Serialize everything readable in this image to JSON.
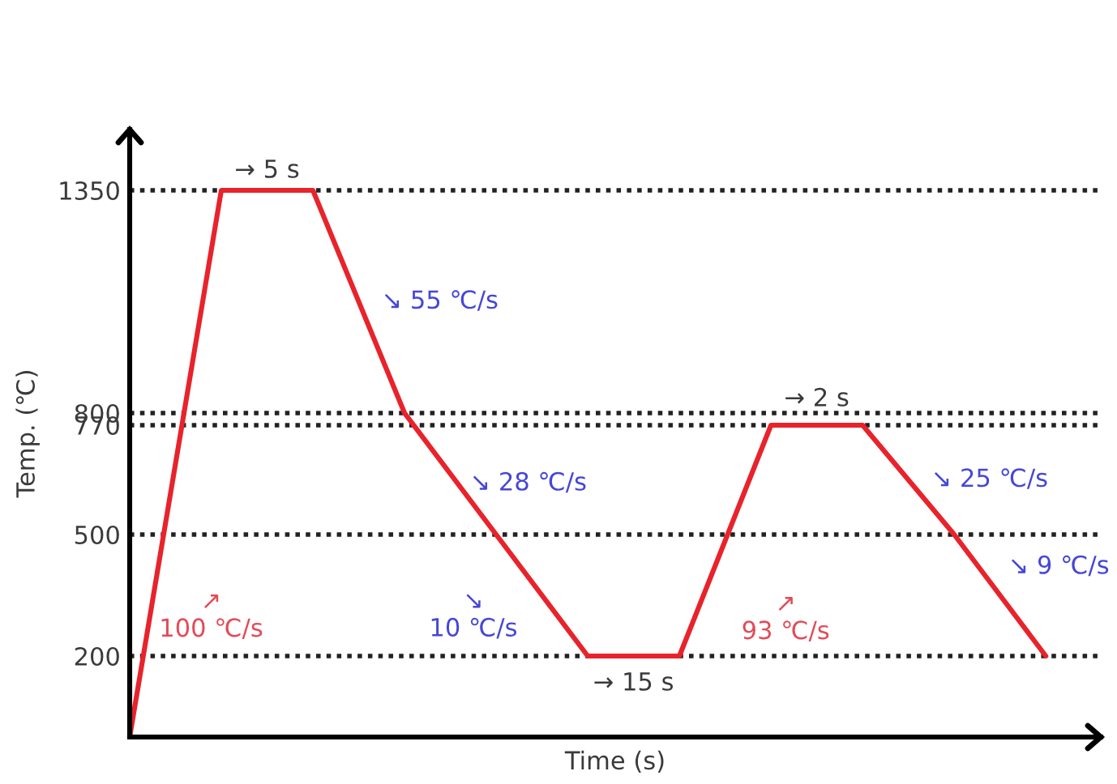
{
  "chart_data": {
    "type": "line",
    "xlabel": "Time (s)",
    "ylabel": "Temp. (℃)",
    "categories": [
      null,
      null,
      null,
      null,
      null,
      null,
      null,
      null,
      null,
      null,
      null
    ],
    "series": [
      {
        "color": "#e8232b",
        "values": [
          0,
          1350,
          1350,
          800,
          500,
          200,
          200,
          770,
          770,
          500,
          200
        ]
      }
    ],
    "ylim": [
      0,
      1500
    ],
    "yticks": [
      200,
      500,
      770,
      800,
      1350
    ],
    "grid": "y",
    "line_style": "solid",
    "annotations": [
      "→ 5 s",
      "↘ 55 ℃/s",
      "↘ 28 ℃/s",
      "↘\n10 ℃/s",
      "↗\n100 ℃/s",
      "→ 15 s",
      "→ 2 s",
      "↗\n93 ℃/s",
      "↘ 25 ℃/s",
      "↘ 9 ℃/s"
    ]
  }
}
